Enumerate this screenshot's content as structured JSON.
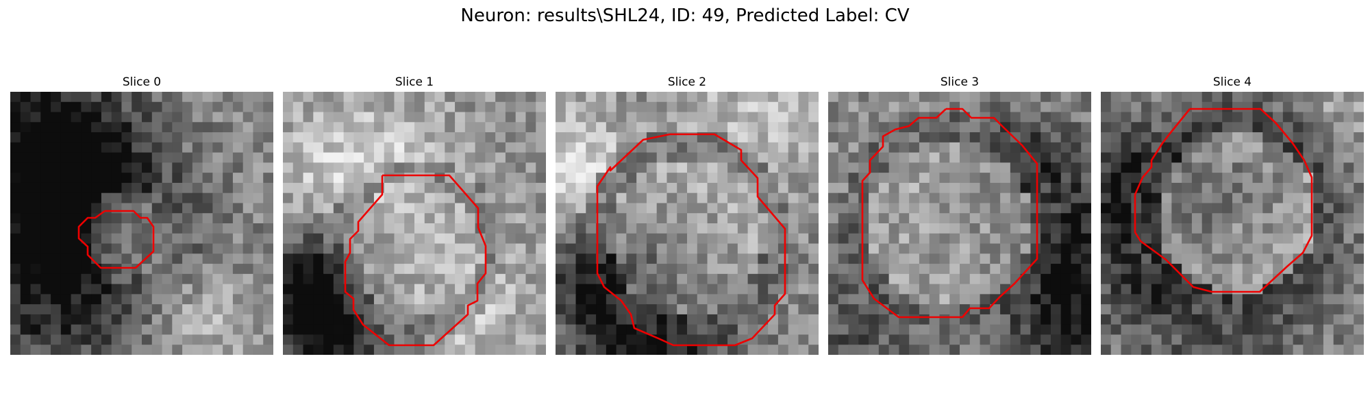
{
  "figure": {
    "title": "Neuron: results\\SHL24, ID: 49, Predicted Label: CV",
    "contour_color": "#ee0000"
  },
  "panels": [
    {
      "label": "Slice 0",
      "seed": 11,
      "bright_center": [
        0.47,
        0.55
      ],
      "bright_radius": 0.16,
      "center_level": 0.52,
      "ring_level": 0.42
    },
    {
      "label": "Slice 1",
      "seed": 23,
      "bright_center": [
        0.5,
        0.6
      ],
      "bright_radius": 0.3,
      "center_level": 0.68,
      "ring_level": 0.42
    },
    {
      "label": "Slice 2",
      "seed": 37,
      "bright_center": [
        0.5,
        0.55
      ],
      "bright_radius": 0.35,
      "center_level": 0.72,
      "ring_level": 0.4
    },
    {
      "label": "Slice 3",
      "seed": 41,
      "bright_center": [
        0.46,
        0.5
      ],
      "bright_radius": 0.36,
      "center_level": 0.7,
      "ring_level": 0.35
    },
    {
      "label": "Slice 4",
      "seed": 53,
      "bright_center": [
        0.52,
        0.46
      ],
      "bright_radius": 0.36,
      "center_level": 0.78,
      "ring_level": 0.33
    }
  ]
}
